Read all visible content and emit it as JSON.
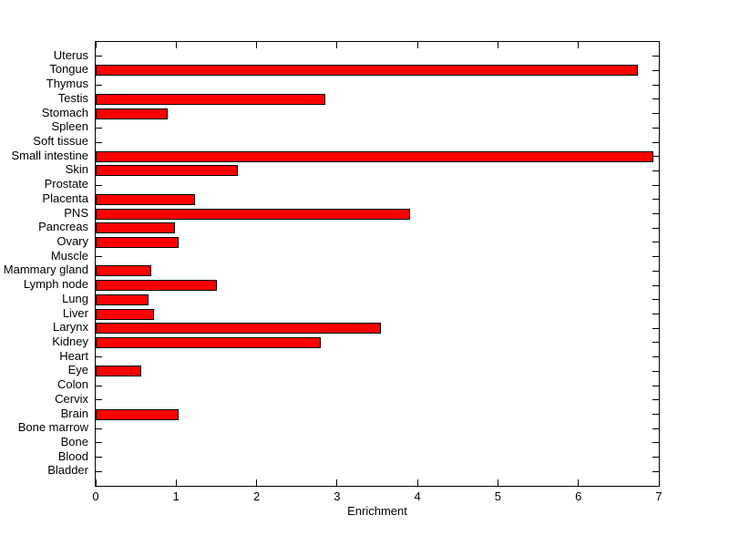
{
  "chart_data": {
    "type": "bar",
    "orientation": "horizontal",
    "title": "",
    "xlabel": "Enrichment",
    "ylabel": "",
    "xlim": [
      0,
      7
    ],
    "x_ticks": [
      "0",
      "1",
      "2",
      "3",
      "4",
      "5",
      "6",
      "7"
    ],
    "grid": false,
    "bar_color": "#ff0000",
    "bar_edge_color": "#000000",
    "axis_color": "#000000",
    "background_color": "#ffffff",
    "categories": [
      "Uterus",
      "Tongue",
      "Thymus",
      "Testis",
      "Stomach",
      "Spleen",
      "Soft tissue",
      "Small intestine",
      "Skin",
      "Prostate",
      "Placenta",
      "PNS",
      "Pancreas",
      "Ovary",
      "Muscle",
      "Mammary gland",
      "Lymph node",
      "Lung",
      "Liver",
      "Larynx",
      "Kidney",
      "Heart",
      "Eye",
      "Colon",
      "Cervix",
      "Brain",
      "Bone marrow",
      "Bone",
      "Blood",
      "Bladder"
    ],
    "values": [
      0,
      6.74,
      0,
      2.85,
      0.89,
      0,
      0,
      6.93,
      1.77,
      0,
      1.23,
      3.91,
      0.99,
      1.03,
      0,
      0.69,
      1.51,
      0.66,
      0.73,
      3.54,
      2.8,
      0,
      0.57,
      0,
      0,
      1.03,
      0,
      0,
      0,
      0
    ]
  }
}
